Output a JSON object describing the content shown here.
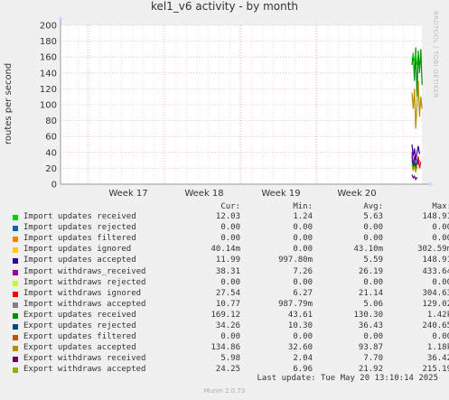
{
  "chart_data": {
    "type": "line",
    "title": "kel1_v6 activity - by month",
    "ylabel": "routes per second",
    "ylim": [
      0,
      200
    ],
    "yticks": [
      0,
      20,
      40,
      60,
      80,
      100,
      120,
      140,
      160,
      180,
      200
    ],
    "xticks": [
      "Week 17",
      "Week 18",
      "Week 19",
      "Week 20"
    ],
    "grid": true,
    "watermark": "RRDTOOL / TOBI OETIKER",
    "legend_headers": [
      "Cur:",
      "Min:",
      "Avg:",
      "Max:"
    ],
    "series": [
      {
        "name": "Import updates received",
        "color": "#00cc00",
        "cur": "12.03",
        "min": "1.24",
        "avg": "5.63",
        "max": "148.91"
      },
      {
        "name": "Import updates rejected",
        "color": "#0066b3",
        "cur": "0.00",
        "min": "0.00",
        "avg": "0.00",
        "max": "0.00"
      },
      {
        "name": "Import updates filtered",
        "color": "#ff8000",
        "cur": "0.00",
        "min": "0.00",
        "avg": "0.00",
        "max": "0.00"
      },
      {
        "name": "Import updates ignored",
        "color": "#ffcc00",
        "cur": "40.14m",
        "min": "0.00",
        "avg": "43.10m",
        "max": "302.59m"
      },
      {
        "name": "Import updates accepted",
        "color": "#330099",
        "cur": "11.99",
        "min": "997.80m",
        "avg": "5.59",
        "max": "148.91"
      },
      {
        "name": "Import withdraws_received",
        "color": "#990099",
        "cur": "38.31",
        "min": "7.26",
        "avg": "26.19",
        "max": "433.64"
      },
      {
        "name": "Import withdraws rejected",
        "color": "#ccff00",
        "cur": "0.00",
        "min": "0.00",
        "avg": "0.00",
        "max": "0.00"
      },
      {
        "name": "Import withdraws ignored",
        "color": "#ff0000",
        "cur": "27.54",
        "min": "6.27",
        "avg": "21.14",
        "max": "304.63"
      },
      {
        "name": "Import withdraws accepted",
        "color": "#808080",
        "cur": "10.77",
        "min": "987.79m",
        "avg": "5.06",
        "max": "129.02"
      },
      {
        "name": "Export updates received",
        "color": "#008f00",
        "cur": "169.12",
        "min": "43.61",
        "avg": "130.30",
        "max": "1.42k"
      },
      {
        "name": "Export updates rejected",
        "color": "#00487d",
        "cur": "34.26",
        "min": "10.30",
        "avg": "36.43",
        "max": "240.65"
      },
      {
        "name": "Export updates filtered",
        "color": "#b35a00",
        "cur": "0.00",
        "min": "0.00",
        "avg": "0.00",
        "max": "0.00"
      },
      {
        "name": "Export updates accepted",
        "color": "#b38f00",
        "cur": "134.86",
        "min": "32.60",
        "avg": "93.87",
        "max": "1.18k"
      },
      {
        "name": "Export withdraws received",
        "color": "#6b006b",
        "cur": "5.98",
        "min": "2.04",
        "avg": "7.70",
        "max": "36.42"
      },
      {
        "name": "Export withdraws accepted",
        "color": "#8fb300",
        "cur": "24.25",
        "min": "6.96",
        "avg": "21.92",
        "max": "215.19"
      }
    ],
    "last_update": "Last update: Tue May 20 13:10:14 2025",
    "footer": "Munin 2.0.73"
  }
}
